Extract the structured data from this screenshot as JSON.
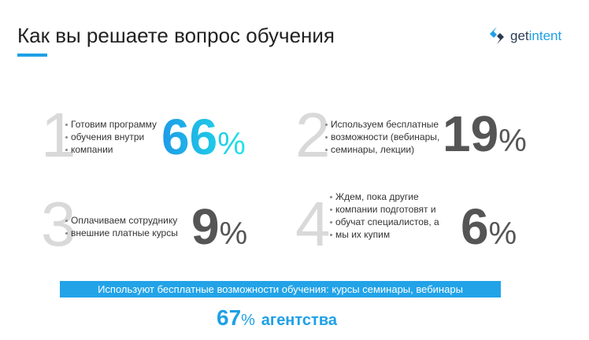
{
  "header": {
    "title": "Как вы решаете вопрос обучения",
    "logo": {
      "part1": "get",
      "part2": "intent"
    }
  },
  "items": [
    {
      "index": "1",
      "lines": [
        "Готовим программу",
        "обучения внутри",
        "компании"
      ],
      "value": "66",
      "unit": "%"
    },
    {
      "index": "2",
      "lines": [
        "Используем бесплатные",
        "возможности (вебинары,",
        "семинары, лекции)"
      ],
      "value": "19",
      "unit": "%"
    },
    {
      "index": "3",
      "lines": [
        "Оплачиваем сотруднику",
        "внешние платные курсы"
      ],
      "value": "9",
      "unit": "%"
    },
    {
      "index": "4",
      "lines": [
        "Ждем, пока другие",
        "компании подготовят и",
        "обучат специалистов, а",
        "мы их купим"
      ],
      "value": "6",
      "unit": "%"
    }
  ],
  "banner": "Используют бесплатные возможности обучения: курсы семинары, вебинары",
  "summary": {
    "value": "67",
    "unit": "%",
    "label": "агентства"
  }
}
